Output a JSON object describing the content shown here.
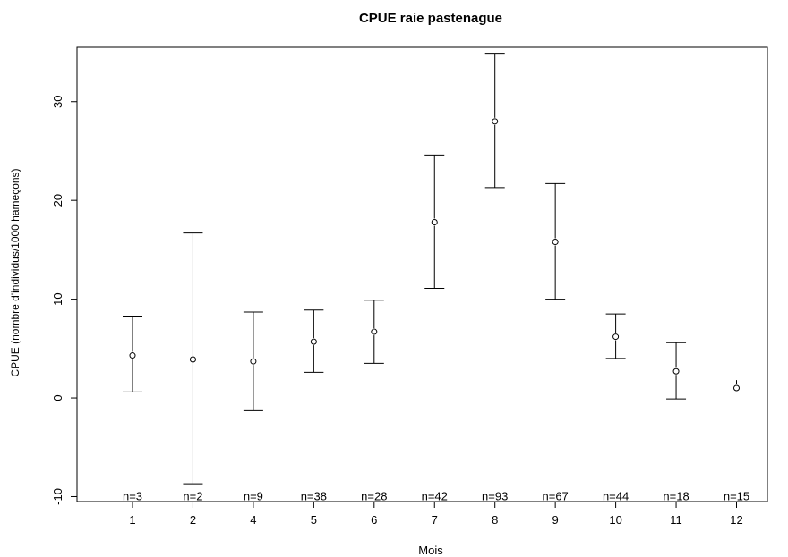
{
  "chart_data": {
    "type": "errorbar",
    "title": "CPUE raie pastenague",
    "xlabel": "Mois",
    "ylabel": "CPUE (nombre d'individus/1000 hameçons)",
    "ylim": [
      -10.5,
      35.5
    ],
    "yticks": [
      -10,
      0,
      10,
      20,
      30
    ],
    "grid": false,
    "legend": "none",
    "categories": [
      "1",
      "2",
      "4",
      "5",
      "6",
      "7",
      "8",
      "9",
      "10",
      "11",
      "12"
    ],
    "series": [
      {
        "mean": [
          4.3,
          3.9,
          3.7,
          5.7,
          6.7,
          17.8,
          28.0,
          15.8,
          6.2,
          2.7,
          1.0
        ],
        "lower": [
          0.6,
          -8.7,
          -1.3,
          2.6,
          3.5,
          11.1,
          21.3,
          10.0,
          4.0,
          -0.1,
          0.6
        ],
        "upper": [
          8.2,
          16.7,
          8.7,
          8.9,
          9.9,
          24.6,
          34.9,
          21.7,
          8.5,
          5.6,
          1.8
        ]
      }
    ],
    "annotations": [
      "n=3",
      "n=2",
      "n=9",
      "n=38",
      "n=28",
      "n=42",
      "n=93",
      "n=67",
      "n=44",
      "n=18",
      "n=15"
    ]
  }
}
